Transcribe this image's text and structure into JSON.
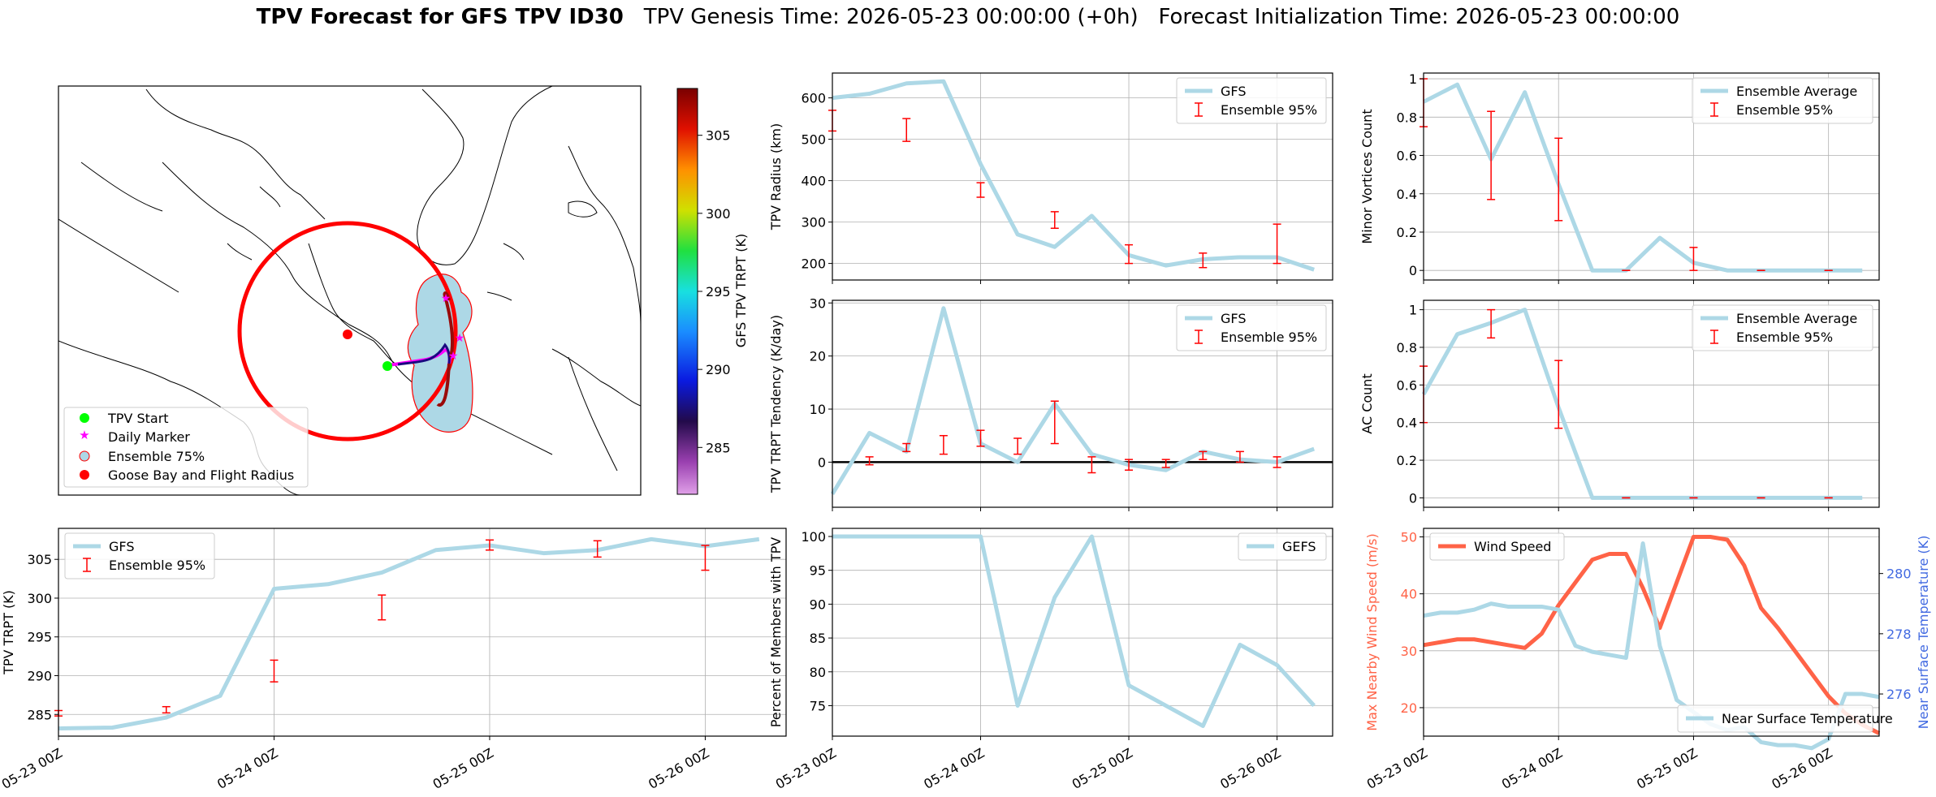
{
  "figure": {
    "title_bold": "TPV Forecast for GFS TPV ID30",
    "title_genesis": "TPV Genesis Time: 2026-05-23 00:00:00 (+0h)",
    "title_init": "Forecast Initialization Time: 2026-05-23 00:00:00"
  },
  "colors": {
    "gfs": "#add8e6",
    "ensemble": "#ff0000",
    "wind": "#ff6347",
    "temp_axis": "#4169e1",
    "circle": "#ff0000",
    "start": "#00ff00",
    "marker": "#ff00ff",
    "ensemble_fill": "#add8e6"
  },
  "map": {
    "legend": [
      "TPV Start",
      "Daily Marker",
      "Ensemble 75%",
      "Goose Bay and Flight Radius"
    ],
    "colorbar_label": "GFS TPV TRPT (K)",
    "colorbar_ticks": [
      "305",
      "300",
      "295",
      "290",
      "285"
    ],
    "colorbar_range": [
      282,
      308
    ]
  },
  "chart_data": [
    {
      "id": "radius",
      "type": "line",
      "ylabel": "TPV Radius (km)",
      "x": [
        0,
        1,
        2,
        3,
        4,
        5,
        6,
        7,
        8,
        9,
        10,
        11,
        12,
        13
      ],
      "series": [
        {
          "name": "GFS",
          "values": [
            600,
            610,
            635,
            640,
            440,
            270,
            240,
            315,
            220,
            195,
            210,
            215,
            215,
            185
          ]
        }
      ],
      "error_bars": {
        "name": "Ensemble 95%",
        "x": [
          0,
          2,
          4,
          6,
          8,
          10,
          12
        ],
        "low": [
          520,
          495,
          360,
          285,
          200,
          190,
          200
        ],
        "high": [
          570,
          550,
          395,
          325,
          245,
          225,
          295
        ]
      },
      "ylim": [
        160,
        660
      ],
      "yticks": [
        200,
        300,
        400,
        500,
        600
      ],
      "x_ticks": [
        0,
        4,
        8,
        12
      ],
      "x_tick_labels": [
        "05-23 00Z",
        "05-24 00Z",
        "05-25 00Z",
        "05-26 00Z"
      ],
      "show_xticklabels": false,
      "legend_pos": "top-right",
      "xlim": [
        0,
        13.5
      ]
    },
    {
      "id": "minor",
      "type": "line",
      "ylabel": "Minor Vortices Count",
      "x": [
        0,
        1,
        2,
        3,
        4,
        5,
        6,
        7,
        8,
        9,
        10,
        11,
        12,
        13
      ],
      "series": [
        {
          "name": "Ensemble Average",
          "values": [
            0.88,
            0.97,
            0.58,
            0.93,
            0.45,
            0,
            0,
            0.17,
            0.04,
            0,
            0,
            0,
            0,
            0
          ]
        }
      ],
      "error_bars": {
        "name": "Ensemble 95%",
        "x": [
          0,
          2,
          4,
          6,
          8,
          10,
          12
        ],
        "low": [
          0.75,
          0.37,
          0.26,
          0,
          0,
          0,
          0
        ],
        "high": [
          1,
          0.83,
          0.69,
          0,
          0.12,
          0,
          0
        ]
      },
      "ylim": [
        -0.05,
        1.03
      ],
      "yticks": [
        0.0,
        0.2,
        0.4,
        0.6,
        0.8,
        1.0
      ],
      "x_ticks": [
        0,
        4,
        8,
        12
      ],
      "x_tick_labels": [
        "05-23 00Z",
        "05-24 00Z",
        "05-25 00Z",
        "05-26 00Z"
      ],
      "show_xticklabels": false,
      "legend_pos": "top-right",
      "xlim": [
        0,
        13.5
      ]
    },
    {
      "id": "tendency",
      "type": "line",
      "ylabel": "TPV TRPT Tendency (K/day)",
      "x": [
        0,
        1,
        2,
        3,
        4,
        5,
        6,
        7,
        8,
        9,
        10,
        11,
        12,
        13
      ],
      "series": [
        {
          "name": "GFS",
          "values": [
            -6,
            5.5,
            2,
            29,
            3.5,
            0,
            11,
            1.5,
            -0.5,
            -1.5,
            2,
            0.5,
            0,
            2.5
          ]
        }
      ],
      "error_bars": {
        "name": "Ensemble 95%",
        "x": [
          1,
          2,
          3,
          4,
          5,
          6,
          7,
          8,
          9,
          10,
          11,
          12
        ],
        "low": [
          -0.5,
          2,
          1.5,
          3,
          1.5,
          3.5,
          -2,
          -1.5,
          -1,
          0.5,
          0,
          -1
        ],
        "high": [
          1,
          3.5,
          5,
          6,
          4.5,
          11.5,
          1,
          0.5,
          0.5,
          2,
          2,
          1
        ]
      },
      "ylim": [
        -8.5,
        30.5
      ],
      "yticks": [
        0,
        10,
        20,
        30
      ],
      "zero_line": true,
      "x_ticks": [
        0,
        4,
        8,
        12
      ],
      "x_tick_labels": [
        "05-23 00Z",
        "05-24 00Z",
        "05-25 00Z",
        "05-26 00Z"
      ],
      "show_xticklabels": false,
      "legend_pos": "top-right",
      "xlim": [
        0,
        13.5
      ]
    },
    {
      "id": "ac",
      "type": "line",
      "ylabel": "AC Count",
      "x": [
        0,
        1,
        2,
        3,
        4,
        5,
        6,
        7,
        8,
        9,
        10,
        11,
        12,
        13
      ],
      "series": [
        {
          "name": "Ensemble Average",
          "values": [
            0.55,
            0.87,
            0.93,
            1.0,
            0.48,
            0,
            0,
            0,
            0,
            0,
            0,
            0,
            0,
            0
          ]
        }
      ],
      "error_bars": {
        "name": "Ensemble 95%",
        "x": [
          0,
          2,
          4,
          6,
          8,
          10,
          12
        ],
        "low": [
          0.4,
          0.85,
          0.37,
          0,
          0,
          0,
          0
        ],
        "high": [
          0.7,
          1.0,
          0.73,
          0,
          0,
          0,
          0
        ]
      },
      "ylim": [
        -0.05,
        1.05
      ],
      "yticks": [
        0.0,
        0.2,
        0.4,
        0.6,
        0.8,
        1.0
      ],
      "x_ticks": [
        0,
        4,
        8,
        12
      ],
      "x_tick_labels": [
        "05-23 00Z",
        "05-24 00Z",
        "05-25 00Z",
        "05-26 00Z"
      ],
      "show_xticklabels": false,
      "legend_pos": "top-right",
      "xlim": [
        0,
        13.5
      ]
    },
    {
      "id": "trpt",
      "type": "line",
      "ylabel": "TPV TRPT (K)",
      "x": [
        0,
        1,
        2,
        3,
        4,
        5,
        6,
        7,
        8,
        9,
        10,
        11,
        12,
        13
      ],
      "series": [
        {
          "name": "GFS",
          "values": [
            283.2,
            283.3,
            284.6,
            287.4,
            301.2,
            301.8,
            303.3,
            306.2,
            306.8,
            305.8,
            306.2,
            307.6,
            306.7,
            307.6
          ]
        }
      ],
      "error_bars": {
        "name": "Ensemble 95%",
        "x": [
          0,
          2,
          4,
          6,
          8,
          10,
          12
        ],
        "low": [
          284.8,
          285.2,
          289.2,
          297.2,
          306.2,
          305.3,
          303.6
        ],
        "high": [
          285.5,
          286.0,
          292.0,
          300.4,
          307.5,
          307.4,
          306.8
        ]
      },
      "ylim": [
        282.2,
        309.0
      ],
      "yticks": [
        285,
        290,
        295,
        300,
        305
      ],
      "x_ticks": [
        0,
        4,
        8,
        12
      ],
      "x_tick_labels": [
        "05-23 00Z",
        "05-24 00Z",
        "05-25 00Z",
        "05-26 00Z"
      ],
      "show_xticklabels": true,
      "legend_pos": "top-left",
      "xlim": [
        0,
        13.5
      ]
    },
    {
      "id": "percent",
      "type": "line",
      "ylabel": "Percent of Members with TPV",
      "x": [
        0,
        1,
        2,
        3,
        4,
        5,
        6,
        7,
        8,
        9,
        10,
        11,
        12,
        13
      ],
      "series": [
        {
          "name": "GEFS",
          "values": [
            100,
            100,
            100,
            100,
            100,
            75,
            91,
            100,
            78,
            75,
            72,
            84,
            81,
            75
          ]
        }
      ],
      "ylim": [
        70.5,
        101.2
      ],
      "yticks": [
        75,
        80,
        85,
        90,
        95,
        100
      ],
      "x_ticks": [
        0,
        4,
        8,
        12
      ],
      "x_tick_labels": [
        "05-23 00Z",
        "05-24 00Z",
        "05-25 00Z",
        "05-26 00Z"
      ],
      "show_xticklabels": true,
      "legend_pos": "top-right",
      "xlim": [
        0,
        13.5
      ]
    },
    {
      "id": "wind",
      "type": "line",
      "ylabel": "Max Nearby Wind Speed (m/s)",
      "ylabel_right": "Near Surface Temperature (K)",
      "x": [
        0,
        1,
        2,
        3,
        4,
        5,
        6,
        7,
        8,
        9,
        10,
        11,
        12,
        13,
        14,
        15,
        16,
        17,
        18,
        19,
        20,
        21,
        22,
        23,
        24,
        25,
        26,
        27
      ],
      "series": [
        {
          "name": "Wind Speed",
          "axis": "left",
          "values": [
            31,
            31.5,
            32,
            32,
            31.5,
            31,
            30.5,
            33,
            38,
            42,
            46,
            47,
            47,
            41,
            34,
            42,
            50,
            50,
            49.5,
            45,
            37.5,
            34,
            30,
            26,
            22,
            19,
            17,
            15.5
          ]
        },
        {
          "name": "Near Surface Temperature",
          "axis": "right",
          "values": [
            278.6,
            278.7,
            278.7,
            278.8,
            279.0,
            278.9,
            278.9,
            278.9,
            278.8,
            277.6,
            277.4,
            277.3,
            277.2,
            281.0,
            277.6,
            275.8,
            275.4,
            275.0,
            274.8,
            274.9,
            274.4,
            274.3,
            274.3,
            274.2,
            274.5,
            276.0,
            276.0,
            275.9
          ]
        }
      ],
      "ylim": [
        15,
        51.5
      ],
      "yticks": [
        20,
        30,
        40,
        50
      ],
      "ylim_right": [
        274.6,
        281.5
      ],
      "yticks_right": [
        276,
        278,
        280
      ],
      "x_ticks": [
        0,
        8,
        16,
        24
      ],
      "x_tick_labels": [
        "05-23 00Z",
        "05-24 00Z",
        "05-25 00Z",
        "05-26 00Z"
      ],
      "show_xticklabels": true,
      "xlim": [
        0,
        27
      ]
    }
  ]
}
